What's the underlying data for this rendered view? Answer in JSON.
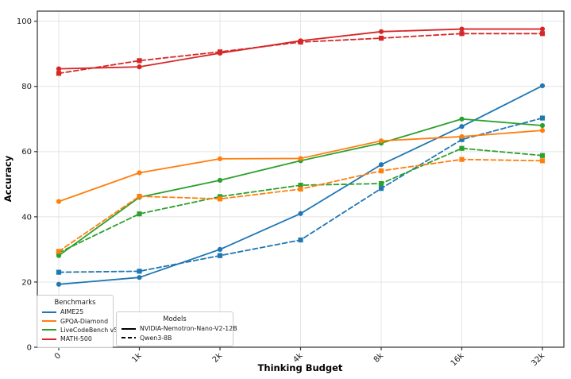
{
  "chart_data": {
    "type": "line",
    "title": "",
    "xlabel": "Thinking Budget",
    "ylabel": "Accuracy",
    "categories": [
      "0",
      "1k",
      "2k",
      "4k",
      "8k",
      "16k",
      "32k"
    ],
    "yticks": [
      0,
      20,
      40,
      60,
      80,
      100
    ],
    "ylim": [
      0,
      103
    ],
    "grid": true,
    "legend_benchmarks": {
      "title": "Benchmarks",
      "entries": [
        {
          "label": "AIME25",
          "color": "#1f77b4"
        },
        {
          "label": "GPQA-Diamond",
          "color": "#ff7f0e"
        },
        {
          "label": "LiveCodeBench v5",
          "color": "#2ca02c"
        },
        {
          "label": "MATH-500",
          "color": "#d62728"
        }
      ]
    },
    "legend_models": {
      "title": "Models",
      "entries": [
        {
          "label": "NVIDIA-Nemotron-Nano-V2-12B",
          "style": "solid"
        },
        {
          "label": "Qwen3-8B",
          "style": "dashed"
        }
      ]
    },
    "colors": {
      "AIME25": "#1f77b4",
      "GPQA-Diamond": "#ff7f0e",
      "LiveCodeBench v5": "#2ca02c",
      "MATH-500": "#d62728"
    },
    "series": [
      {
        "benchmark": "AIME25",
        "model": "NVIDIA-Nemotron-Nano-V2-12B",
        "style": "solid",
        "color": "#1f77b4",
        "values": [
          19.3,
          21.4,
          30.0,
          41.0,
          56.0,
          67.7,
          80.2
        ]
      },
      {
        "benchmark": "AIME25",
        "model": "Qwen3-8B",
        "style": "dashed",
        "color": "#1f77b4",
        "values": [
          23.0,
          23.3,
          28.1,
          32.9,
          48.7,
          63.7,
          70.3
        ]
      },
      {
        "benchmark": "LiveCodeBench v5",
        "model": "NVIDIA-Nemotron-Nano-V2-12B",
        "style": "solid",
        "color": "#2ca02c",
        "values": [
          28.1,
          46.0,
          51.2,
          57.2,
          62.6,
          70.0,
          68.0
        ]
      },
      {
        "benchmark": "LiveCodeBench v5",
        "model": "Qwen3-8B",
        "style": "dashed",
        "color": "#2ca02c",
        "values": [
          29.0,
          40.9,
          46.2,
          49.7,
          50.2,
          61.0,
          58.8
        ]
      },
      {
        "benchmark": "GPQA-Diamond",
        "model": "NVIDIA-Nemotron-Nano-V2-12B",
        "style": "solid",
        "color": "#ff7f0e",
        "values": [
          44.7,
          53.5,
          57.8,
          57.9,
          63.3,
          64.6,
          66.5
        ]
      },
      {
        "benchmark": "GPQA-Diamond",
        "model": "Qwen3-8B",
        "style": "dashed",
        "color": "#ff7f0e",
        "values": [
          29.4,
          46.3,
          45.5,
          48.5,
          54.1,
          57.6,
          57.2
        ]
      },
      {
        "benchmark": "MATH-500",
        "model": "NVIDIA-Nemotron-Nano-V2-12B",
        "style": "solid",
        "color": "#d62728",
        "values": [
          85.4,
          86.0,
          90.2,
          94.0,
          96.8,
          97.6,
          97.6
        ]
      },
      {
        "benchmark": "MATH-500",
        "model": "Qwen3-8B",
        "style": "dashed",
        "color": "#d62728",
        "values": [
          84.0,
          87.9,
          90.6,
          93.6,
          94.8,
          96.2,
          96.2
        ]
      }
    ]
  }
}
